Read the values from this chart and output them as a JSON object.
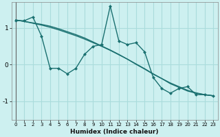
{
  "xlabel": "Humidex (Indice chaleur)",
  "bg_color": "#cdf0f0",
  "line_color": "#1a7070",
  "grid_color": "#aadcdc",
  "xlim": [
    -0.5,
    23.5
  ],
  "ylim": [
    -1.5,
    1.7
  ],
  "yticks": [
    -1,
    0,
    1
  ],
  "xticks": [
    0,
    1,
    2,
    3,
    4,
    5,
    6,
    7,
    8,
    9,
    10,
    11,
    12,
    13,
    14,
    15,
    16,
    17,
    18,
    19,
    20,
    21,
    22,
    23
  ],
  "line1_x": [
    0,
    1,
    2,
    3,
    4,
    5,
    6,
    7,
    8,
    9,
    10,
    11,
    12,
    13,
    14,
    15,
    16,
    17,
    18,
    19,
    20,
    21,
    22,
    23
  ],
  "line1_y": [
    1.2,
    1.2,
    1.3,
    0.78,
    -0.1,
    -0.1,
    -0.25,
    -0.1,
    0.28,
    0.5,
    0.55,
    1.6,
    0.65,
    0.55,
    0.6,
    0.35,
    -0.35,
    -0.65,
    -0.78,
    -0.65,
    -0.6,
    -0.82,
    -0.82,
    -0.85
  ],
  "line2_x": [
    0,
    23
  ],
  "line2_y": [
    1.22,
    -0.85
  ],
  "line3_x": [
    0,
    23
  ],
  "line3_y": [
    1.22,
    -0.85
  ],
  "reg1_x": [
    0,
    1,
    2,
    3,
    4,
    5,
    6,
    7,
    8,
    9,
    10,
    11,
    12,
    13,
    14,
    15,
    16,
    17,
    18,
    19,
    20,
    21,
    22,
    23
  ],
  "reg1_y": [
    1.22,
    1.18,
    1.13,
    1.08,
    1.02,
    0.95,
    0.87,
    0.79,
    0.7,
    0.6,
    0.5,
    0.39,
    0.27,
    0.15,
    0.02,
    -0.11,
    -0.25,
    -0.38,
    -0.52,
    -0.62,
    -0.72,
    -0.78,
    -0.82,
    -0.85
  ],
  "reg2_x": [
    0,
    1,
    2,
    3,
    4,
    5,
    6,
    7,
    8,
    9,
    10,
    11,
    12,
    13,
    14,
    15,
    16,
    17,
    18,
    19,
    20,
    21,
    22,
    23
  ],
  "reg2_y": [
    1.22,
    1.18,
    1.14,
    1.1,
    1.05,
    0.98,
    0.9,
    0.82,
    0.73,
    0.62,
    0.51,
    0.4,
    0.28,
    0.15,
    0.01,
    -0.12,
    -0.26,
    -0.38,
    -0.5,
    -0.6,
    -0.7,
    -0.77,
    -0.82,
    -0.85
  ]
}
